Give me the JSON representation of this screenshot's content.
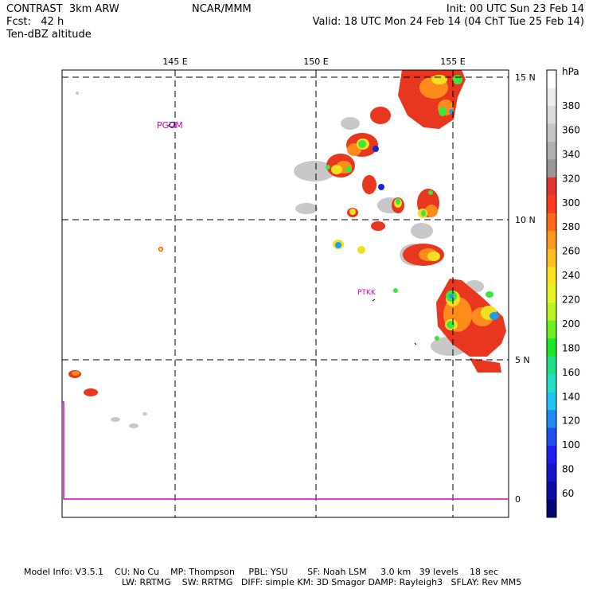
{
  "header": {
    "title": "CONTRAST  3km ARW",
    "forecast": "Fcst:   42 h",
    "field": "Ten-dBZ altitude",
    "center": "NCAR/MMM",
    "init": "Init: 00 UTC Sun 23 Feb 14",
    "valid": "Valid: 18 UTC Mon 24 Feb 14 (04 ChT Tue 25 Feb 14)"
  },
  "map": {
    "lon_labels": [
      "145 E",
      "150 E",
      "155 E"
    ],
    "lat_labels": [
      "15 N",
      "10 N",
      "5 N",
      "0"
    ],
    "stations": [
      {
        "id": "PGUM"
      },
      {
        "id": "PTKK"
      }
    ]
  },
  "colorbar": {
    "unit": "hPa",
    "labels": [
      "380",
      "360",
      "340",
      "320",
      "300",
      "280",
      "260",
      "240",
      "220",
      "200",
      "180",
      "160",
      "140",
      "120",
      "100",
      "80",
      "60"
    ],
    "colors": [
      "#ffffff",
      "#ededed",
      "#dbdbdb",
      "#c6c6c6",
      "#b0b0b0",
      "#989898",
      "#e0352e",
      "#ff3b1f",
      "#ff6a1a",
      "#ff9a18",
      "#ffbf1c",
      "#ffe21e",
      "#e6f520",
      "#b9f51e",
      "#6ef01e",
      "#1ee629",
      "#22e08a",
      "#22e0c8",
      "#22c4f5",
      "#1e8cf5",
      "#1e50f0",
      "#1e1ef0",
      "#1414c8",
      "#0c0ca0",
      "#050578"
    ]
  },
  "footer": {
    "line1": "Model Info: V3.5.1    CU: No Cu    MP: Thompson     PBL: YSU       SF: Noah LSM     3.0 km   39 levels    18 sec",
    "line2": "LW: RRTMG    SW: RRTMG   DIFF: simple KM: 3D Smagor DAMP: Rayleigh3   SFLAY: Rev MM5"
  }
}
